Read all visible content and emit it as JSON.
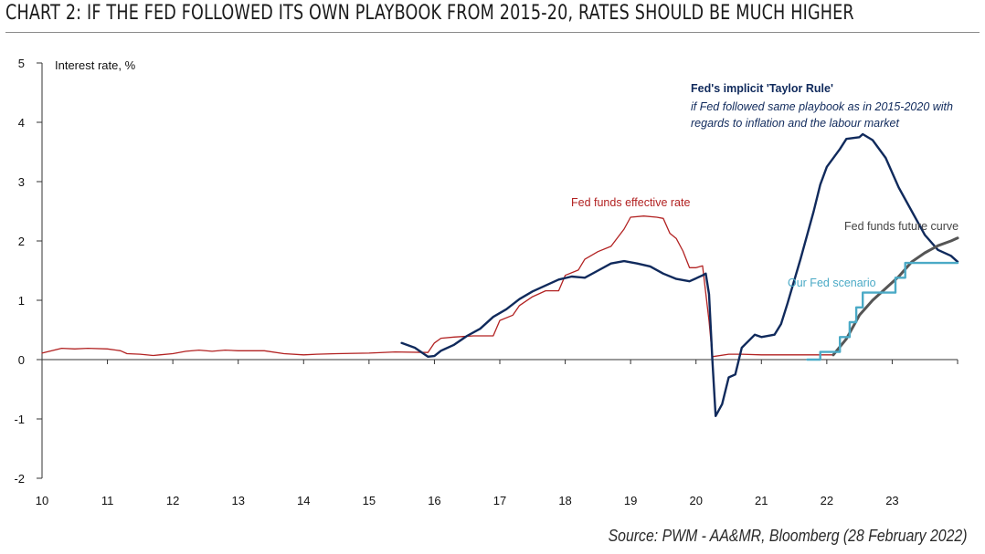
{
  "title": "CHART 2: IF THE FED FOLLOWED ITS OWN PLAYBOOK FROM 2015-20, RATES SHOULD BE MUCH HIGHER",
  "source": "Source: PWM - AA&MR, Bloomberg (28 February 2022)",
  "colors": {
    "fed_funds": "#b22222",
    "taylor": "#102a5c",
    "futures": "#555555",
    "scenario": "#4baac6"
  },
  "chart_data": {
    "type": "line",
    "ylabel": "Interest rate, %",
    "ylim": [
      -2,
      5
    ],
    "xlim": [
      10,
      24
    ],
    "yticks": [
      "5",
      "4",
      "3",
      "2",
      "1",
      "0",
      "-1",
      "-2"
    ],
    "xticks": [
      "10",
      "11",
      "12",
      "13",
      "14",
      "15",
      "16",
      "17",
      "18",
      "19",
      "20",
      "21",
      "22",
      "23"
    ],
    "annotations": {
      "taylor_title": "Fed's implicit 'Taylor Rule'",
      "taylor_sub1": "if Fed followed same playbook as in 2015-2020 with",
      "taylor_sub2": "regards to inflation and the labour market",
      "fed_funds": "Fed funds effective rate",
      "futures": "Fed funds future curve",
      "scenario": "Our Fed scenario"
    },
    "series": [
      {
        "name": "Fed funds effective rate",
        "points": [
          [
            10.0,
            0.11
          ],
          [
            10.3,
            0.19
          ],
          [
            10.5,
            0.18
          ],
          [
            10.7,
            0.19
          ],
          [
            11.0,
            0.18
          ],
          [
            11.2,
            0.15
          ],
          [
            11.3,
            0.1
          ],
          [
            11.5,
            0.09
          ],
          [
            11.7,
            0.07
          ],
          [
            11.8,
            0.08
          ],
          [
            12.0,
            0.1
          ],
          [
            12.2,
            0.14
          ],
          [
            12.4,
            0.16
          ],
          [
            12.6,
            0.14
          ],
          [
            12.8,
            0.16
          ],
          [
            13.0,
            0.15
          ],
          [
            13.4,
            0.15
          ],
          [
            13.7,
            0.1
          ],
          [
            14.0,
            0.08
          ],
          [
            14.2,
            0.09
          ],
          [
            14.5,
            0.1
          ],
          [
            15.0,
            0.11
          ],
          [
            15.4,
            0.13
          ],
          [
            15.9,
            0.12
          ],
          [
            16.0,
            0.28
          ],
          [
            16.1,
            0.36
          ],
          [
            16.3,
            0.38
          ],
          [
            16.6,
            0.4
          ],
          [
            16.9,
            0.4
          ],
          [
            17.0,
            0.66
          ],
          [
            17.2,
            0.75
          ],
          [
            17.3,
            0.91
          ],
          [
            17.5,
            1.06
          ],
          [
            17.7,
            1.16
          ],
          [
            17.9,
            1.16
          ],
          [
            18.0,
            1.42
          ],
          [
            18.2,
            1.51
          ],
          [
            18.3,
            1.69
          ],
          [
            18.5,
            1.82
          ],
          [
            18.7,
            1.91
          ],
          [
            18.9,
            2.2
          ],
          [
            19.0,
            2.4
          ],
          [
            19.2,
            2.42
          ],
          [
            19.4,
            2.4
          ],
          [
            19.5,
            2.38
          ],
          [
            19.6,
            2.13
          ],
          [
            19.7,
            2.04
          ],
          [
            19.8,
            1.83
          ],
          [
            19.9,
            1.55
          ],
          [
            20.0,
            1.55
          ],
          [
            20.1,
            1.58
          ],
          [
            20.2,
            0.65
          ],
          [
            20.25,
            0.05
          ],
          [
            20.5,
            0.09
          ],
          [
            20.7,
            0.09
          ],
          [
            21.0,
            0.08
          ],
          [
            21.5,
            0.08
          ],
          [
            22.0,
            0.08
          ],
          [
            22.1,
            0.08
          ]
        ]
      },
      {
        "name": "Fed's implicit 'Taylor Rule'",
        "points": [
          [
            15.5,
            0.28
          ],
          [
            15.7,
            0.2
          ],
          [
            15.9,
            0.05
          ],
          [
            16.0,
            0.06
          ],
          [
            16.1,
            0.15
          ],
          [
            16.3,
            0.25
          ],
          [
            16.5,
            0.4
          ],
          [
            16.7,
            0.52
          ],
          [
            16.9,
            0.72
          ],
          [
            17.1,
            0.85
          ],
          [
            17.3,
            1.02
          ],
          [
            17.5,
            1.15
          ],
          [
            17.7,
            1.25
          ],
          [
            17.9,
            1.35
          ],
          [
            18.1,
            1.4
          ],
          [
            18.3,
            1.38
          ],
          [
            18.5,
            1.5
          ],
          [
            18.7,
            1.62
          ],
          [
            18.9,
            1.66
          ],
          [
            19.1,
            1.62
          ],
          [
            19.3,
            1.57
          ],
          [
            19.5,
            1.45
          ],
          [
            19.7,
            1.36
          ],
          [
            19.9,
            1.32
          ],
          [
            20.1,
            1.42
          ],
          [
            20.15,
            1.45
          ],
          [
            20.2,
            1.1
          ],
          [
            20.25,
            0.0
          ],
          [
            20.3,
            -0.95
          ],
          [
            20.4,
            -0.75
          ],
          [
            20.5,
            -0.3
          ],
          [
            20.6,
            -0.25
          ],
          [
            20.7,
            0.2
          ],
          [
            20.9,
            0.42
          ],
          [
            21.0,
            0.38
          ],
          [
            21.2,
            0.42
          ],
          [
            21.3,
            0.6
          ],
          [
            21.4,
            0.95
          ],
          [
            21.6,
            1.7
          ],
          [
            21.8,
            2.5
          ],
          [
            21.9,
            2.95
          ],
          [
            22.0,
            3.25
          ],
          [
            22.2,
            3.55
          ],
          [
            22.3,
            3.72
          ],
          [
            22.5,
            3.75
          ],
          [
            22.55,
            3.8
          ],
          [
            22.7,
            3.7
          ],
          [
            22.9,
            3.4
          ],
          [
            23.1,
            2.9
          ],
          [
            23.3,
            2.5
          ],
          [
            23.5,
            2.1
          ],
          [
            23.7,
            1.85
          ],
          [
            23.9,
            1.75
          ],
          [
            24.0,
            1.65
          ]
        ]
      },
      {
        "name": "Fed funds future curve",
        "points": [
          [
            22.1,
            0.08
          ],
          [
            22.3,
            0.35
          ],
          [
            22.5,
            0.75
          ],
          [
            22.7,
            1.0
          ],
          [
            22.9,
            1.2
          ],
          [
            23.1,
            1.4
          ],
          [
            23.3,
            1.65
          ],
          [
            23.5,
            1.8
          ],
          [
            23.7,
            1.92
          ],
          [
            23.9,
            2.0
          ],
          [
            24.0,
            2.05
          ]
        ]
      },
      {
        "name": "Our Fed scenario",
        "step": true,
        "points": [
          [
            21.7,
            0.0
          ],
          [
            21.9,
            0.13
          ],
          [
            22.1,
            0.13
          ],
          [
            22.2,
            0.38
          ],
          [
            22.3,
            0.38
          ],
          [
            22.35,
            0.63
          ],
          [
            22.4,
            0.63
          ],
          [
            22.45,
            0.88
          ],
          [
            22.5,
            0.88
          ],
          [
            22.55,
            1.13
          ],
          [
            23.0,
            1.13
          ],
          [
            23.05,
            1.38
          ],
          [
            23.15,
            1.38
          ],
          [
            23.2,
            1.63
          ],
          [
            24.0,
            1.63
          ]
        ]
      }
    ]
  }
}
